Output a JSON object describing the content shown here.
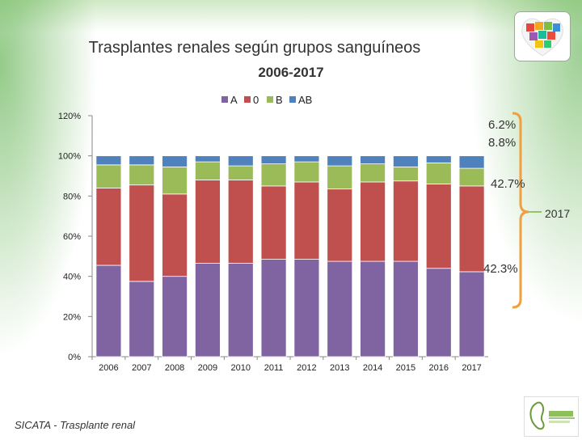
{
  "title": "Trasplantes renales según grupos sanguíneos",
  "subtitle": "2006-2017",
  "source": "SICATA - Trasplante renal",
  "annotations": {
    "ab": "6.2%",
    "b": "8.8%",
    "o": "42.7%",
    "a": "42.3%",
    "year": "2017"
  },
  "colors": {
    "A": "#8064A2",
    "0": "#C0504D",
    "B": "#9BBB59",
    "AB": "#4F81BD",
    "bracket": "#F0A040"
  },
  "icons": {
    "top_logo": "heart-logo",
    "bottom_logo": "nefrologia-logo"
  },
  "chart_data": {
    "type": "bar",
    "stacked": true,
    "categories": [
      "2006",
      "2007",
      "2008",
      "2009",
      "2010",
      "2011",
      "2012",
      "2013",
      "2014",
      "2015",
      "2016",
      "2017"
    ],
    "series": [
      {
        "name": "A",
        "values": [
          45.5,
          37.5,
          40.0,
          46.5,
          46.5,
          48.5,
          48.5,
          47.5,
          47.5,
          47.5,
          44.0,
          42.3
        ]
      },
      {
        "name": "0",
        "values": [
          38.5,
          48.0,
          41.0,
          41.5,
          41.5,
          36.5,
          38.5,
          36.0,
          39.5,
          40.0,
          42.0,
          42.7
        ]
      },
      {
        "name": "B",
        "values": [
          11.5,
          10.0,
          13.5,
          9.0,
          7.0,
          11.0,
          10.0,
          11.5,
          9.0,
          7.0,
          10.5,
          8.8
        ]
      },
      {
        "name": "AB",
        "values": [
          4.5,
          4.5,
          5.5,
          3.0,
          5.0,
          4.0,
          3.0,
          5.0,
          4.0,
          5.5,
          3.5,
          6.2
        ]
      }
    ],
    "ylim": [
      0,
      120
    ],
    "yticks": [
      "0%",
      "20%",
      "40%",
      "60%",
      "80%",
      "100%",
      "120%"
    ],
    "legend": [
      "A",
      "0",
      "B",
      "AB"
    ],
    "legend_position": "top",
    "grid": false
  }
}
